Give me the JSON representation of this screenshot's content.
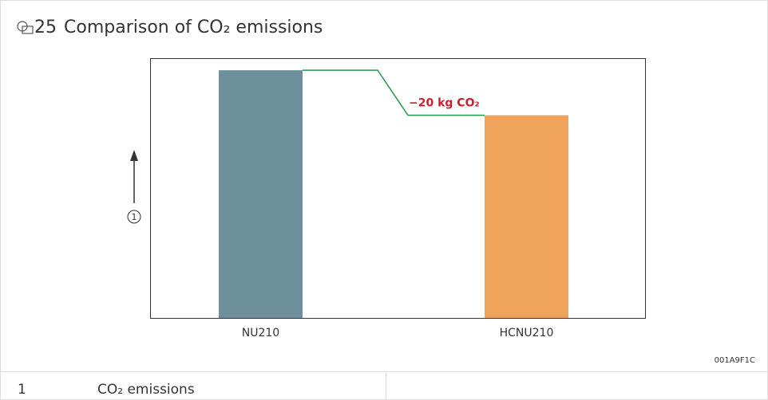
{
  "figure": {
    "number": "25",
    "title": "Comparison of CO₂ emissions",
    "id": "001A9F1C"
  },
  "chart_data": {
    "type": "bar",
    "categories": [
      "NU210",
      "HCNU210"
    ],
    "values": [
      110,
      90
    ],
    "colors": [
      "#6e8f9c",
      "#f0a35a"
    ],
    "connector_color": "#1e9a4a",
    "ylim": [
      0,
      115
    ],
    "y_axis_callout": "1",
    "annotation": "−20 kg CO₂"
  },
  "legend_table": {
    "rows": [
      [
        "1",
        "CO₂ emissions"
      ]
    ]
  }
}
